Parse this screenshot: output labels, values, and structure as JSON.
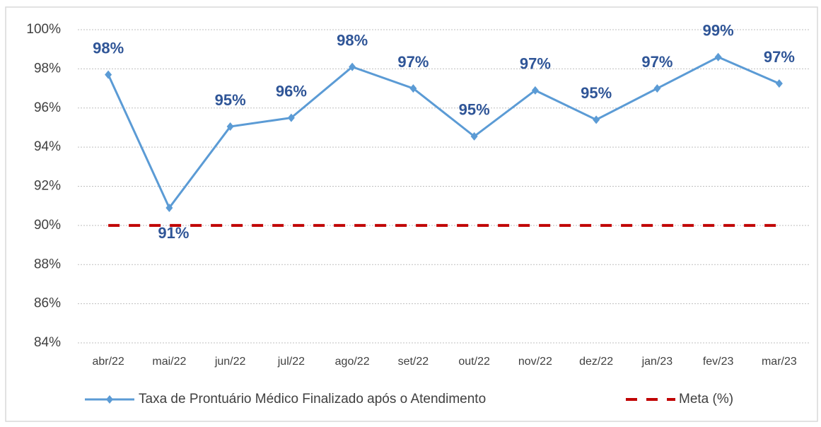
{
  "chart_data": {
    "type": "line",
    "categories": [
      "abr/22",
      "mai/22",
      "jun/22",
      "jul/22",
      "ago/22",
      "set/22",
      "out/22",
      "nov/22",
      "dez/22",
      "jan/23",
      "fev/23",
      "mar/23"
    ],
    "series": [
      {
        "name": "Taxa de Prontuário Médico Finalizado após o Atendimento",
        "color": "#5b9bd5",
        "values": [
          97.7,
          90.9,
          95.05,
          95.5,
          98.1,
          97.0,
          94.55,
          96.9,
          95.4,
          97.0,
          98.6,
          97.25
        ],
        "value_labels": [
          "98%",
          "91%",
          "95%",
          "96%",
          "98%",
          "97%",
          "95%",
          "97%",
          "95%",
          "97%",
          "99%",
          "97%"
        ]
      },
      {
        "name": "Meta (%)",
        "color": "#c00000",
        "dashed": true,
        "values": [
          90,
          90,
          90,
          90,
          90,
          90,
          90,
          90,
          90,
          90,
          90,
          90
        ]
      }
    ],
    "ylim": [
      84,
      100
    ],
    "yticks": [
      {
        "value": 84,
        "label": "84%"
      },
      {
        "value": 86,
        "label": "86%"
      },
      {
        "value": 88,
        "label": "88%"
      },
      {
        "value": 90,
        "label": "90%"
      },
      {
        "value": 92,
        "label": "92%"
      },
      {
        "value": 94,
        "label": "94%"
      },
      {
        "value": 96,
        "label": "96%"
      },
      {
        "value": 98,
        "label": "98%"
      },
      {
        "value": 100,
        "label": "100%"
      }
    ],
    "grid": true,
    "legend": "bottom"
  }
}
